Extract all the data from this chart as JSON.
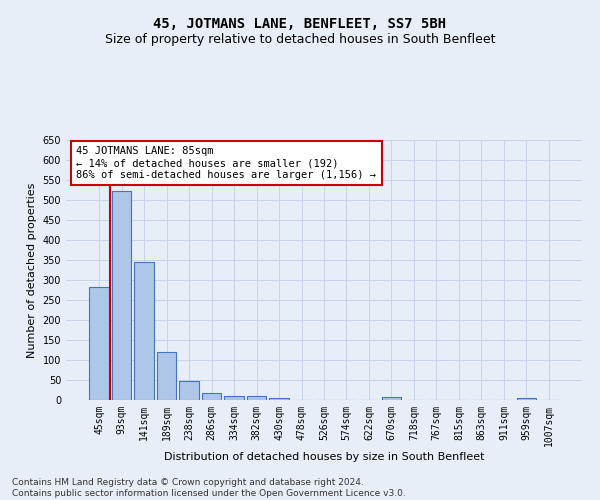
{
  "title": "45, JOTMANS LANE, BENFLEET, SS7 5BH",
  "subtitle": "Size of property relative to detached houses in South Benfleet",
  "xlabel": "Distribution of detached houses by size in South Benfleet",
  "ylabel": "Number of detached properties",
  "categories": [
    "45sqm",
    "93sqm",
    "141sqm",
    "189sqm",
    "238sqm",
    "286sqm",
    "334sqm",
    "382sqm",
    "430sqm",
    "478sqm",
    "526sqm",
    "574sqm",
    "622sqm",
    "670sqm",
    "718sqm",
    "767sqm",
    "815sqm",
    "863sqm",
    "911sqm",
    "959sqm",
    "1007sqm"
  ],
  "values": [
    283,
    523,
    346,
    120,
    48,
    17,
    11,
    10,
    5,
    0,
    0,
    0,
    0,
    8,
    0,
    0,
    0,
    0,
    0,
    5,
    0
  ],
  "bar_color": "#aec6e8",
  "bar_edge_color": "#4472c4",
  "vline_color": "#cc0000",
  "vline_x_index": 1,
  "annotation_text": "45 JOTMANS LANE: 85sqm\n← 14% of detached houses are smaller (192)\n86% of semi-detached houses are larger (1,156) →",
  "annotation_box_color": "#ffffff",
  "annotation_box_edge": "#cc0000",
  "ylim": [
    0,
    650
  ],
  "yticks": [
    0,
    50,
    100,
    150,
    200,
    250,
    300,
    350,
    400,
    450,
    500,
    550,
    600,
    650
  ],
  "grid_color": "#c8d4e8",
  "background_color": "#e8eef8",
  "footer": "Contains HM Land Registry data © Crown copyright and database right 2024.\nContains public sector information licensed under the Open Government Licence v3.0.",
  "title_fontsize": 10,
  "subtitle_fontsize": 9,
  "axis_label_fontsize": 8,
  "tick_fontsize": 7,
  "annotation_fontsize": 7.5,
  "footer_fontsize": 6.5
}
